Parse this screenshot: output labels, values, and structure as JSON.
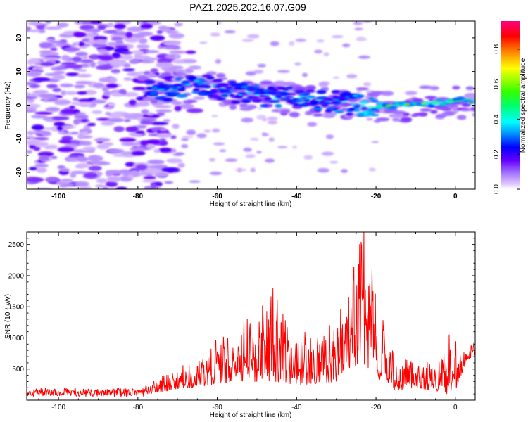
{
  "figure": {
    "title": "PAZ1.2025.202.16.07.G09"
  },
  "chart_data": [
    {
      "type": "heatmap",
      "title": "PAZ1.2025.202.16.07.G09",
      "xlabel": "Height of straight line (km)",
      "ylabel": "Frequency (Hz)",
      "xlim": [
        -108,
        5
      ],
      "ylim": [
        -25,
        25
      ],
      "xticks": [
        -100,
        -80,
        -60,
        -40,
        -20,
        0
      ],
      "yticks": [
        -20,
        -10,
        0,
        10,
        20
      ],
      "colorbar": {
        "label": "Normalized spectral amplitude",
        "range": [
          0,
          0.96
        ],
        "ticks": [
          0.0,
          0.2,
          0.4,
          0.6,
          0.8
        ],
        "colormap": [
          "#ffffff",
          "#e6ccff",
          "#a070ff",
          "#6600ff",
          "#0000ff",
          "#00a0ff",
          "#00ffff",
          "#00ff66",
          "#66ff00",
          "#ffff00",
          "#ff8000",
          "#ff0000",
          "#ff0080"
        ]
      },
      "ridge": {
        "description_points_x": [
          -75,
          -70,
          -65,
          -60,
          -55,
          -50,
          -45,
          -40,
          -35,
          -30,
          -25,
          -20,
          -15,
          -10,
          -5,
          0,
          4
        ],
        "description_points_y": [
          4,
          5,
          6.5,
          5,
          3.5,
          3,
          2.5,
          2,
          1.5,
          1,
          0,
          -0.5,
          0,
          0.5,
          0.5,
          1.5,
          0.8
        ]
      }
    },
    {
      "type": "line",
      "xlabel": "Height of straight line (km)",
      "ylabel": "SNR (10 * v/v)",
      "xlim": [
        -108,
        5
      ],
      "ylim": [
        0,
        2700
      ],
      "xticks": [
        -100,
        -80,
        -60,
        -40,
        -20,
        0
      ],
      "yticks": [
        500,
        1000,
        1500,
        2000,
        2500
      ],
      "color": "#ff0000",
      "envelope": {
        "x": [
          -108,
          -100,
          -90,
          -80,
          -75,
          -70,
          -65,
          -60,
          -55,
          -52,
          -48,
          -45,
          -42,
          -40,
          -35,
          -30,
          -28,
          -26,
          -24,
          -22,
          -20,
          -18,
          -15,
          -10,
          -5,
          -2,
          0,
          2,
          5
        ],
        "low": [
          60,
          60,
          60,
          60,
          120,
          180,
          200,
          260,
          300,
          300,
          280,
          300,
          250,
          250,
          250,
          300,
          400,
          500,
          600,
          500,
          350,
          300,
          150,
          200,
          150,
          80,
          120,
          500,
          700
        ],
        "high": [
          180,
          180,
          190,
          200,
          350,
          550,
          650,
          1000,
          1150,
          1400,
          1550,
          1800,
          1300,
          1200,
          1000,
          1350,
          1600,
          2050,
          2700,
          2100,
          1800,
          1500,
          700,
          650,
          580,
          800,
          1000,
          800,
          950
        ]
      },
      "peaks": [
        {
          "x": -46,
          "y": 1800
        },
        {
          "x": -23,
          "y": 2700
        },
        {
          "x": -21,
          "y": 2100
        },
        {
          "x": -1.5,
          "y": 1050
        }
      ]
    }
  ]
}
